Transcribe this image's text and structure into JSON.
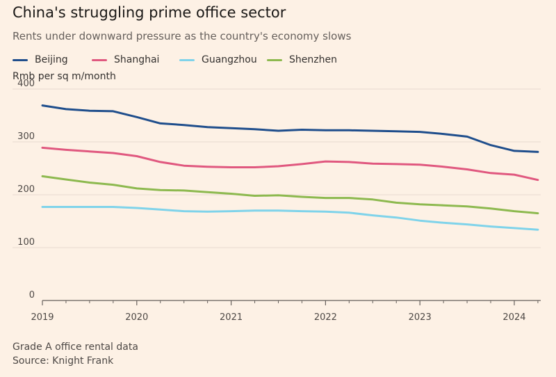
{
  "title": "China's struggling prime office sector",
  "subtitle": "Rents under downward pressure as the country's economy slows",
  "unit_label": "Rmb per sq m/month",
  "footnote": "Grade A office rental data",
  "source": "Source: Knight Frank",
  "colors": {
    "background": "#FDF1E5",
    "grid": "#E6D9CE",
    "axis": "#66605C"
  },
  "chart_data": {
    "type": "line",
    "ylabel": "Rmb per sq m/month",
    "xlim": [
      2019,
      2024.28
    ],
    "ylim": [
      0,
      400
    ],
    "y_ticks": [
      0,
      100,
      200,
      300,
      400
    ],
    "x_ticks": [
      "2019",
      "2020",
      "2021",
      "2022",
      "2023",
      "2024"
    ],
    "x": [
      2019.0,
      2019.25,
      2019.5,
      2019.75,
      2020.0,
      2020.25,
      2020.5,
      2020.75,
      2021.0,
      2021.25,
      2021.5,
      2021.75,
      2022.0,
      2022.25,
      2022.5,
      2022.75,
      2023.0,
      2023.25,
      2023.5,
      2023.75,
      2024.0,
      2024.25
    ],
    "legend_position": "top-left",
    "series": [
      {
        "name": "Beijing",
        "color": "#1F4E8C",
        "values": [
          369,
          362,
          359,
          358,
          347,
          335,
          332,
          328,
          326,
          324,
          321,
          323,
          322,
          322,
          321,
          320,
          319,
          315,
          310,
          294,
          283,
          281
        ]
      },
      {
        "name": "Shanghai",
        "color": "#E0587F",
        "values": [
          289,
          285,
          282,
          279,
          273,
          262,
          255,
          253,
          252,
          252,
          254,
          258,
          263,
          262,
          259,
          258,
          257,
          253,
          248,
          241,
          238,
          228
        ]
      },
      {
        "name": "Guangzhou",
        "color": "#7FD3EA",
        "values": [
          177,
          177,
          177,
          177,
          175,
          172,
          169,
          168,
          169,
          170,
          170,
          169,
          168,
          166,
          161,
          157,
          151,
          147,
          144,
          140,
          137,
          134
        ]
      },
      {
        "name": "Shenzhen",
        "color": "#8DB94F",
        "values": [
          235,
          229,
          223,
          219,
          212,
          209,
          208,
          205,
          202,
          198,
          199,
          196,
          194,
          194,
          191,
          185,
          182,
          180,
          178,
          174,
          169,
          165
        ]
      }
    ]
  }
}
